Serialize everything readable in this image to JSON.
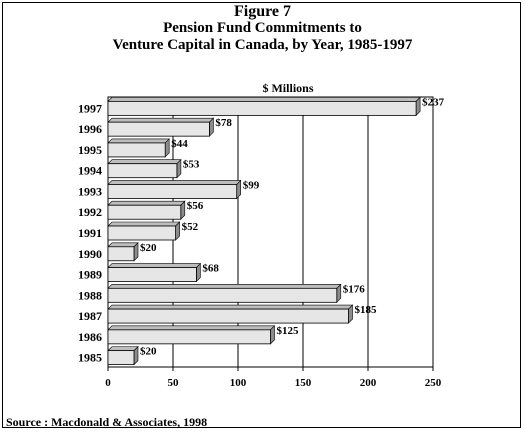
{
  "figure": {
    "label": "Figure 7",
    "title_line1": "Pension Fund Commitments to",
    "title_line2": "Venture Capital in Canada, by Year, 1985-1997",
    "source": "Source : Macdonald & Associates, 1998"
  },
  "colors": {
    "bar_face": "#e6e6e6",
    "bar_side": "#8c8c8c",
    "bar_top": "#bdbdbd",
    "grid": "#000000"
  },
  "chart_data": {
    "type": "bar",
    "orientation": "horizontal",
    "title": "$ Millions",
    "xlim": [
      0,
      250
    ],
    "xticks": [
      0,
      50,
      100,
      150,
      200,
      250
    ],
    "grid": true,
    "categories": [
      "1997",
      "1996",
      "1995",
      "1994",
      "1993",
      "1992",
      "1991",
      "1990",
      "1989",
      "1988",
      "1987",
      "1986",
      "1985"
    ],
    "values": [
      237,
      78,
      44,
      53,
      99,
      56,
      52,
      20,
      68,
      176,
      185,
      125,
      20
    ],
    "labels": [
      "$237",
      "$78",
      "$44",
      "$53",
      "$99",
      "$56",
      "$52",
      "$20",
      "$68",
      "$176",
      "$185",
      "$125",
      "$20"
    ]
  }
}
